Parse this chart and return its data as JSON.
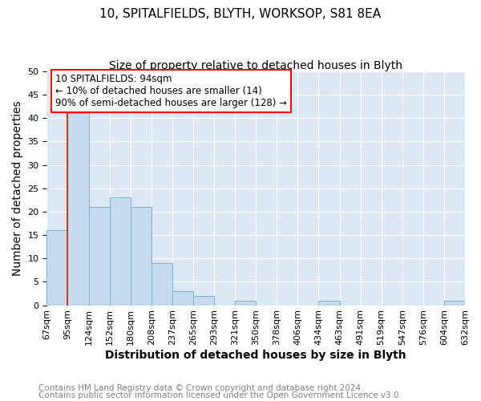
{
  "title": "10, SPITALFIELDS, BLYTH, WORKSOP, S81 8EA",
  "subtitle": "Size of property relative to detached houses in Blyth",
  "xlabel": "Distribution of detached houses by size in Blyth",
  "ylabel": "Number of detached properties",
  "bin_labels": [
    "67sqm",
    "95sqm",
    "124sqm",
    "152sqm",
    "180sqm",
    "208sqm",
    "237sqm",
    "265sqm",
    "293sqm",
    "321sqm",
    "350sqm",
    "378sqm",
    "406sqm",
    "434sqm",
    "463sqm",
    "491sqm",
    "519sqm",
    "547sqm",
    "576sqm",
    "604sqm",
    "632sqm"
  ],
  "bar_heights": [
    16,
    41,
    21,
    23,
    21,
    9,
    3,
    2,
    0,
    1,
    0,
    0,
    0,
    1,
    0,
    0,
    0,
    0,
    0,
    1,
    0
  ],
  "bar_color": "#c6dcee",
  "bar_edge_color": "#7bafd4",
  "marker_line_color": "red",
  "annotation_box_text": "10 SPITALFIELDS: 94sqm\n← 10% of detached houses are smaller (14)\n90% of semi-detached houses are larger (128) →",
  "annotation_box_color": "white",
  "annotation_box_edge_color": "red",
  "ylim": [
    0,
    50
  ],
  "yticks": [
    0,
    5,
    10,
    15,
    20,
    25,
    30,
    35,
    40,
    45,
    50
  ],
  "footer1": "Contains HM Land Registry data © Crown copyright and database right 2024.",
  "footer2": "Contains public sector information licensed under the Open Government Licence v3.0.",
  "title_fontsize": 11,
  "subtitle_fontsize": 10,
  "label_fontsize": 10,
  "tick_fontsize": 8,
  "ann_fontsize": 8.5,
  "footer_fontsize": 7.5,
  "plot_bg_color": "#dce9f5"
}
